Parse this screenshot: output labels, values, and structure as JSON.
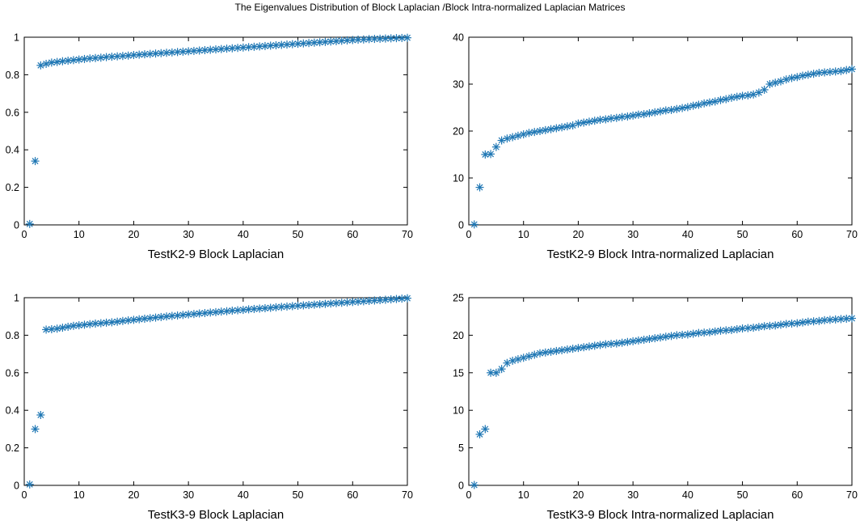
{
  "figure_title": "The Eigenvalues Distribution of Block Laplacian /Block Intra-normalized Laplacian Matrices",
  "marker_color": "#1f77b4",
  "chart_data": [
    {
      "type": "scatter",
      "marker": "asterisk",
      "xlabel": "TestK2-9 Block Laplacian",
      "ylabel": "",
      "xlim": [
        0,
        70
      ],
      "ylim": [
        0,
        1
      ],
      "xticks": [
        0,
        10,
        20,
        30,
        40,
        50,
        60,
        70
      ],
      "yticks": [
        0,
        0.2,
        0.4,
        0.6,
        0.8,
        1
      ],
      "x": [
        1,
        2,
        3,
        4,
        5,
        6,
        7,
        8,
        9,
        10,
        11,
        12,
        13,
        14,
        15,
        16,
        17,
        18,
        19,
        20,
        21,
        22,
        23,
        24,
        25,
        26,
        27,
        28,
        29,
        30,
        31,
        32,
        33,
        34,
        35,
        36,
        37,
        38,
        39,
        40,
        41,
        42,
        43,
        44,
        45,
        46,
        47,
        48,
        49,
        50,
        51,
        52,
        53,
        54,
        55,
        56,
        57,
        58,
        59,
        60,
        61,
        62,
        63,
        64,
        65,
        66,
        67,
        68,
        69,
        70
      ],
      "y": [
        0.005,
        0.34,
        0.85,
        0.858,
        0.865,
        0.868,
        0.872,
        0.875,
        0.878,
        0.881,
        0.884,
        0.887,
        0.889,
        0.891,
        0.894,
        0.896,
        0.898,
        0.9,
        0.902,
        0.905,
        0.907,
        0.909,
        0.911,
        0.913,
        0.915,
        0.917,
        0.919,
        0.921,
        0.923,
        0.925,
        0.927,
        0.929,
        0.931,
        0.933,
        0.935,
        0.937,
        0.939,
        0.941,
        0.943,
        0.945,
        0.947,
        0.949,
        0.951,
        0.953,
        0.955,
        0.957,
        0.959,
        0.961,
        0.963,
        0.965,
        0.967,
        0.969,
        0.971,
        0.973,
        0.975,
        0.977,
        0.979,
        0.981,
        0.983,
        0.985,
        0.987,
        0.988,
        0.99,
        0.991,
        0.992,
        0.993,
        0.994,
        0.995,
        0.996,
        0.997
      ]
    },
    {
      "type": "scatter",
      "marker": "asterisk",
      "xlabel": "TestK2-9 Block Intra-normalized Laplacian",
      "ylabel": "",
      "xlim": [
        0,
        70
      ],
      "ylim": [
        0,
        40
      ],
      "xticks": [
        0,
        10,
        20,
        30,
        40,
        50,
        60,
        70
      ],
      "yticks": [
        0,
        10,
        20,
        30,
        40
      ],
      "x": [
        1,
        2,
        3,
        4,
        5,
        6,
        7,
        8,
        9,
        10,
        11,
        12,
        13,
        14,
        15,
        16,
        17,
        18,
        19,
        20,
        21,
        22,
        23,
        24,
        25,
        26,
        27,
        28,
        29,
        30,
        31,
        32,
        33,
        34,
        35,
        36,
        37,
        38,
        39,
        40,
        41,
        42,
        43,
        44,
        45,
        46,
        47,
        48,
        49,
        50,
        51,
        52,
        53,
        54,
        55,
        56,
        57,
        58,
        59,
        60,
        61,
        62,
        63,
        64,
        65,
        66,
        67,
        68,
        69,
        70
      ],
      "y": [
        0.1,
        8.0,
        15.0,
        15.1,
        16.6,
        18.0,
        18.4,
        18.7,
        19.0,
        19.3,
        19.6,
        19.8,
        20.0,
        20.2,
        20.4,
        20.6,
        20.8,
        21.0,
        21.2,
        21.6,
        21.8,
        22.0,
        22.2,
        22.4,
        22.5,
        22.7,
        22.8,
        23.0,
        23.1,
        23.3,
        23.5,
        23.6,
        23.8,
        24.0,
        24.2,
        24.4,
        24.5,
        24.7,
        24.9,
        25.1,
        25.4,
        25.6,
        25.9,
        26.1,
        26.3,
        26.6,
        26.8,
        27.1,
        27.3,
        27.5,
        27.6,
        27.8,
        28.2,
        28.8,
        30.0,
        30.3,
        30.6,
        31.0,
        31.3,
        31.5,
        31.8,
        32.0,
        32.2,
        32.4,
        32.5,
        32.6,
        32.7,
        32.8,
        33.0,
        33.2
      ]
    },
    {
      "type": "scatter",
      "marker": "asterisk",
      "xlabel": "TestK3-9 Block Laplacian",
      "ylabel": "",
      "xlim": [
        0,
        70
      ],
      "ylim": [
        0,
        1
      ],
      "xticks": [
        0,
        10,
        20,
        30,
        40,
        50,
        60,
        70
      ],
      "yticks": [
        0,
        0.2,
        0.4,
        0.6,
        0.8,
        1
      ],
      "x": [
        1,
        2,
        3,
        4,
        5,
        6,
        7,
        8,
        9,
        10,
        11,
        12,
        13,
        14,
        15,
        16,
        17,
        18,
        19,
        20,
        21,
        22,
        23,
        24,
        25,
        26,
        27,
        28,
        29,
        30,
        31,
        32,
        33,
        34,
        35,
        36,
        37,
        38,
        39,
        40,
        41,
        42,
        43,
        44,
        45,
        46,
        47,
        48,
        49,
        50,
        51,
        52,
        53,
        54,
        55,
        56,
        57,
        58,
        59,
        60,
        61,
        62,
        63,
        64,
        65,
        66,
        67,
        68,
        69,
        70
      ],
      "y": [
        0.005,
        0.3,
        0.375,
        0.83,
        0.832,
        0.835,
        0.84,
        0.845,
        0.85,
        0.853,
        0.856,
        0.859,
        0.862,
        0.864,
        0.867,
        0.869,
        0.872,
        0.876,
        0.879,
        0.882,
        0.885,
        0.888,
        0.891,
        0.894,
        0.897,
        0.9,
        0.903,
        0.905,
        0.908,
        0.911,
        0.913,
        0.916,
        0.918,
        0.921,
        0.923,
        0.926,
        0.928,
        0.931,
        0.933,
        0.935,
        0.938,
        0.94,
        0.942,
        0.944,
        0.946,
        0.949,
        0.951,
        0.953,
        0.955,
        0.957,
        0.959,
        0.961,
        0.963,
        0.965,
        0.967,
        0.969,
        0.971,
        0.973,
        0.975,
        0.977,
        0.979,
        0.981,
        0.983,
        0.985,
        0.987,
        0.989,
        0.991,
        0.993,
        0.995,
        0.997
      ]
    },
    {
      "type": "scatter",
      "marker": "asterisk",
      "xlabel": "TestK3-9 Block Intra-normalized Laplacian",
      "ylabel": "",
      "xlim": [
        0,
        70
      ],
      "ylim": [
        0,
        25
      ],
      "xticks": [
        0,
        10,
        20,
        30,
        40,
        50,
        60,
        70
      ],
      "yticks": [
        0,
        5,
        10,
        15,
        20,
        25
      ],
      "x": [
        1,
        2,
        3,
        4,
        5,
        6,
        7,
        8,
        9,
        10,
        11,
        12,
        13,
        14,
        15,
        16,
        17,
        18,
        19,
        20,
        21,
        22,
        23,
        24,
        25,
        26,
        27,
        28,
        29,
        30,
        31,
        32,
        33,
        34,
        35,
        36,
        37,
        38,
        39,
        40,
        41,
        42,
        43,
        44,
        45,
        46,
        47,
        48,
        49,
        50,
        51,
        52,
        53,
        54,
        55,
        56,
        57,
        58,
        59,
        60,
        61,
        62,
        63,
        64,
        65,
        66,
        67,
        68,
        69,
        70
      ],
      "y": [
        0.05,
        6.8,
        7.5,
        15.0,
        15.0,
        15.5,
        16.3,
        16.6,
        16.8,
        17.0,
        17.2,
        17.4,
        17.6,
        17.7,
        17.8,
        17.9,
        18.0,
        18.1,
        18.2,
        18.3,
        18.4,
        18.5,
        18.6,
        18.7,
        18.8,
        18.85,
        18.9,
        19.0,
        19.1,
        19.2,
        19.3,
        19.4,
        19.5,
        19.6,
        19.7,
        19.8,
        19.9,
        20.0,
        20.05,
        20.1,
        20.2,
        20.3,
        20.35,
        20.4,
        20.5,
        20.6,
        20.65,
        20.7,
        20.8,
        20.9,
        20.95,
        21.0,
        21.1,
        21.2,
        21.25,
        21.3,
        21.4,
        21.5,
        21.55,
        21.6,
        21.7,
        21.8,
        21.85,
        21.9,
        22.0,
        22.05,
        22.1,
        22.15,
        22.2,
        22.25
      ]
    }
  ]
}
